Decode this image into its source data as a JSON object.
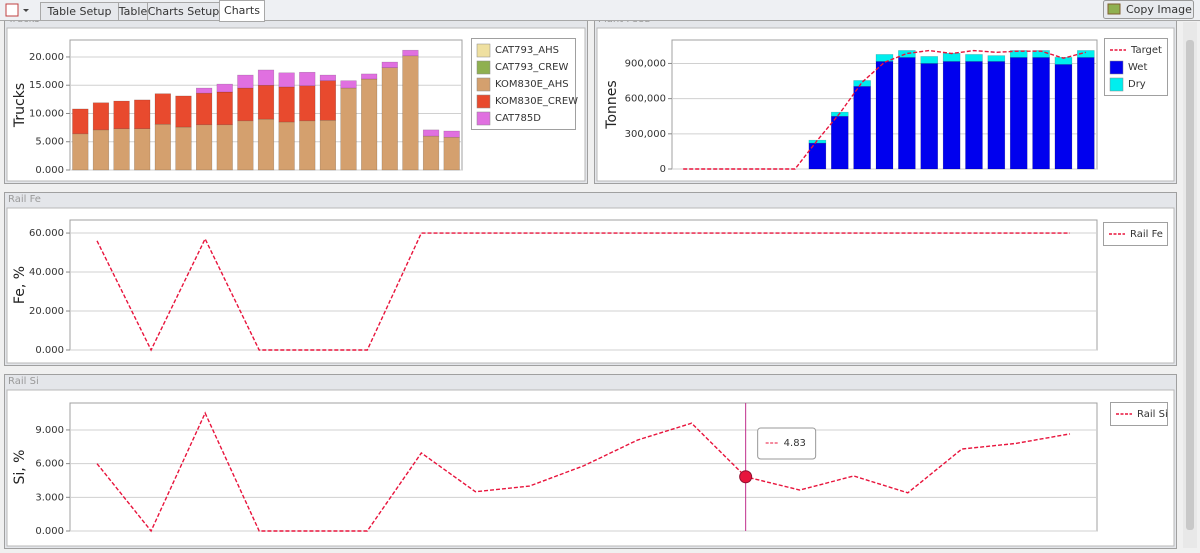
{
  "tabs": [
    "Table Setup",
    "Table",
    "Charts Setup",
    "Charts"
  ],
  "copy_button": "Copy Image",
  "chart_data": [
    {
      "type": "bar",
      "stacked": true,
      "panel_title": "Trucks",
      "y_label": "Trucks",
      "ylim": [
        0,
        23
      ],
      "yticks": [
        {
          "value": 0,
          "label": "0.000"
        },
        {
          "value": 5,
          "label": "5.000"
        },
        {
          "value": 10,
          "label": "10.000"
        },
        {
          "value": 15,
          "label": "15.000"
        },
        {
          "value": 20,
          "label": "20.000"
        }
      ],
      "grid": true,
      "series": [
        {
          "name": "CAT793_AHS",
          "color": "#efe0a0",
          "values": [
            0,
            0,
            0,
            0,
            0,
            0,
            0,
            0,
            0,
            0,
            0,
            0,
            0,
            0,
            0,
            0,
            0,
            0,
            0
          ]
        },
        {
          "name": "CAT793_CREW",
          "color": "#8fb050",
          "values": [
            0,
            0,
            0,
            0,
            0,
            0,
            0,
            0,
            0,
            0,
            0,
            0,
            0,
            0,
            0,
            0,
            0,
            0,
            0
          ]
        },
        {
          "name": "KOM830E_AHS",
          "color": "#d4a06e",
          "values": [
            6.4,
            7.1,
            7.3,
            7.3,
            8.1,
            7.6,
            8.0,
            8.0,
            8.7,
            9.0,
            8.5,
            8.7,
            8.8,
            14.5,
            16.1,
            18.1,
            20.2,
            6.0,
            5.8
          ]
        },
        {
          "name": "KOM830E_CREW",
          "color": "#e84a2e",
          "values": [
            4.4,
            4.8,
            4.9,
            5.1,
            5.4,
            5.5,
            5.6,
            5.8,
            5.8,
            6.0,
            6.2,
            6.2,
            7.0,
            0,
            0,
            0,
            0,
            0,
            0
          ]
        },
        {
          "name": "CAT785D",
          "color": "#e070e0",
          "values": [
            0,
            0,
            0,
            0,
            0,
            0,
            0.9,
            1.4,
            2.3,
            2.7,
            2.5,
            2.4,
            1.0,
            1.3,
            0.9,
            1.0,
            1.0,
            1.1,
            1.1
          ]
        }
      ]
    },
    {
      "type": "bar",
      "stacked": true,
      "panel_title": "Plant Feed",
      "y_label": "Tonnes",
      "ylim": [
        0,
        1100000
      ],
      "yticks": [
        0,
        {
          "value": 300000,
          "label": "300,000"
        },
        {
          "value": 600000,
          "label": "600,000"
        },
        {
          "value": 900000,
          "label": "900,000"
        }
      ],
      "grid": true,
      "series": [
        {
          "name": "Target",
          "type": "line",
          "color": "#e8143c",
          "values": [
            0,
            0,
            0,
            0,
            0,
            0,
            245000,
            475000,
            740000,
            910000,
            985000,
            1010000,
            985000,
            1010000,
            995000,
            1005000,
            1005000,
            945000,
            995000
          ]
        },
        {
          "name": "Wet",
          "color": "#0000ee",
          "values": [
            null,
            null,
            null,
            null,
            null,
            null,
            221000,
            450000,
            705000,
            917000,
            951000,
            900000,
            917000,
            917000,
            917000,
            951000,
            951000,
            892000,
            951000
          ]
        },
        {
          "name": "Dry",
          "color": "#00eeee",
          "values": [
            null,
            null,
            null,
            null,
            null,
            null,
            25000,
            35000,
            50000,
            60000,
            60000,
            60000,
            70000,
            60000,
            50000,
            60000,
            60000,
            60000,
            60000
          ]
        }
      ]
    },
    {
      "type": "line",
      "panel_title": "Rail Fe",
      "y_label": "Fe, %",
      "ylim": [
        0,
        66.7
      ],
      "yticks": [
        {
          "value": 0,
          "label": "0.000"
        },
        {
          "value": 20,
          "label": "20.000"
        },
        {
          "value": 40,
          "label": "40.000"
        },
        {
          "value": 60,
          "label": "60.000"
        }
      ],
      "grid": true,
      "series": [
        {
          "name": "Rail Fe",
          "color": "#e8143c",
          "values": [
            56,
            0,
            57,
            0,
            0,
            0,
            60,
            60,
            60,
            60,
            60,
            60,
            60,
            60,
            60,
            60,
            60,
            60,
            60
          ]
        }
      ]
    },
    {
      "type": "line",
      "panel_title": "Rail Si",
      "y_label": "Si, %",
      "ylim": [
        0,
        11.4
      ],
      "yticks": [
        {
          "value": 0,
          "label": "0.000"
        },
        {
          "value": 3,
          "label": "3.000"
        },
        {
          "value": 6,
          "label": "6.000"
        },
        {
          "value": 9,
          "label": "9.000"
        }
      ],
      "grid": true,
      "series": [
        {
          "name": "Rail Si",
          "color": "#e8143c",
          "values": [
            6.0,
            0,
            10.5,
            0,
            0,
            0,
            6.95,
            3.5,
            4.0,
            5.8,
            8.1,
            9.6,
            4.83,
            3.65,
            4.9,
            3.4,
            7.3,
            7.8,
            8.65
          ]
        }
      ]
    }
  ]
}
